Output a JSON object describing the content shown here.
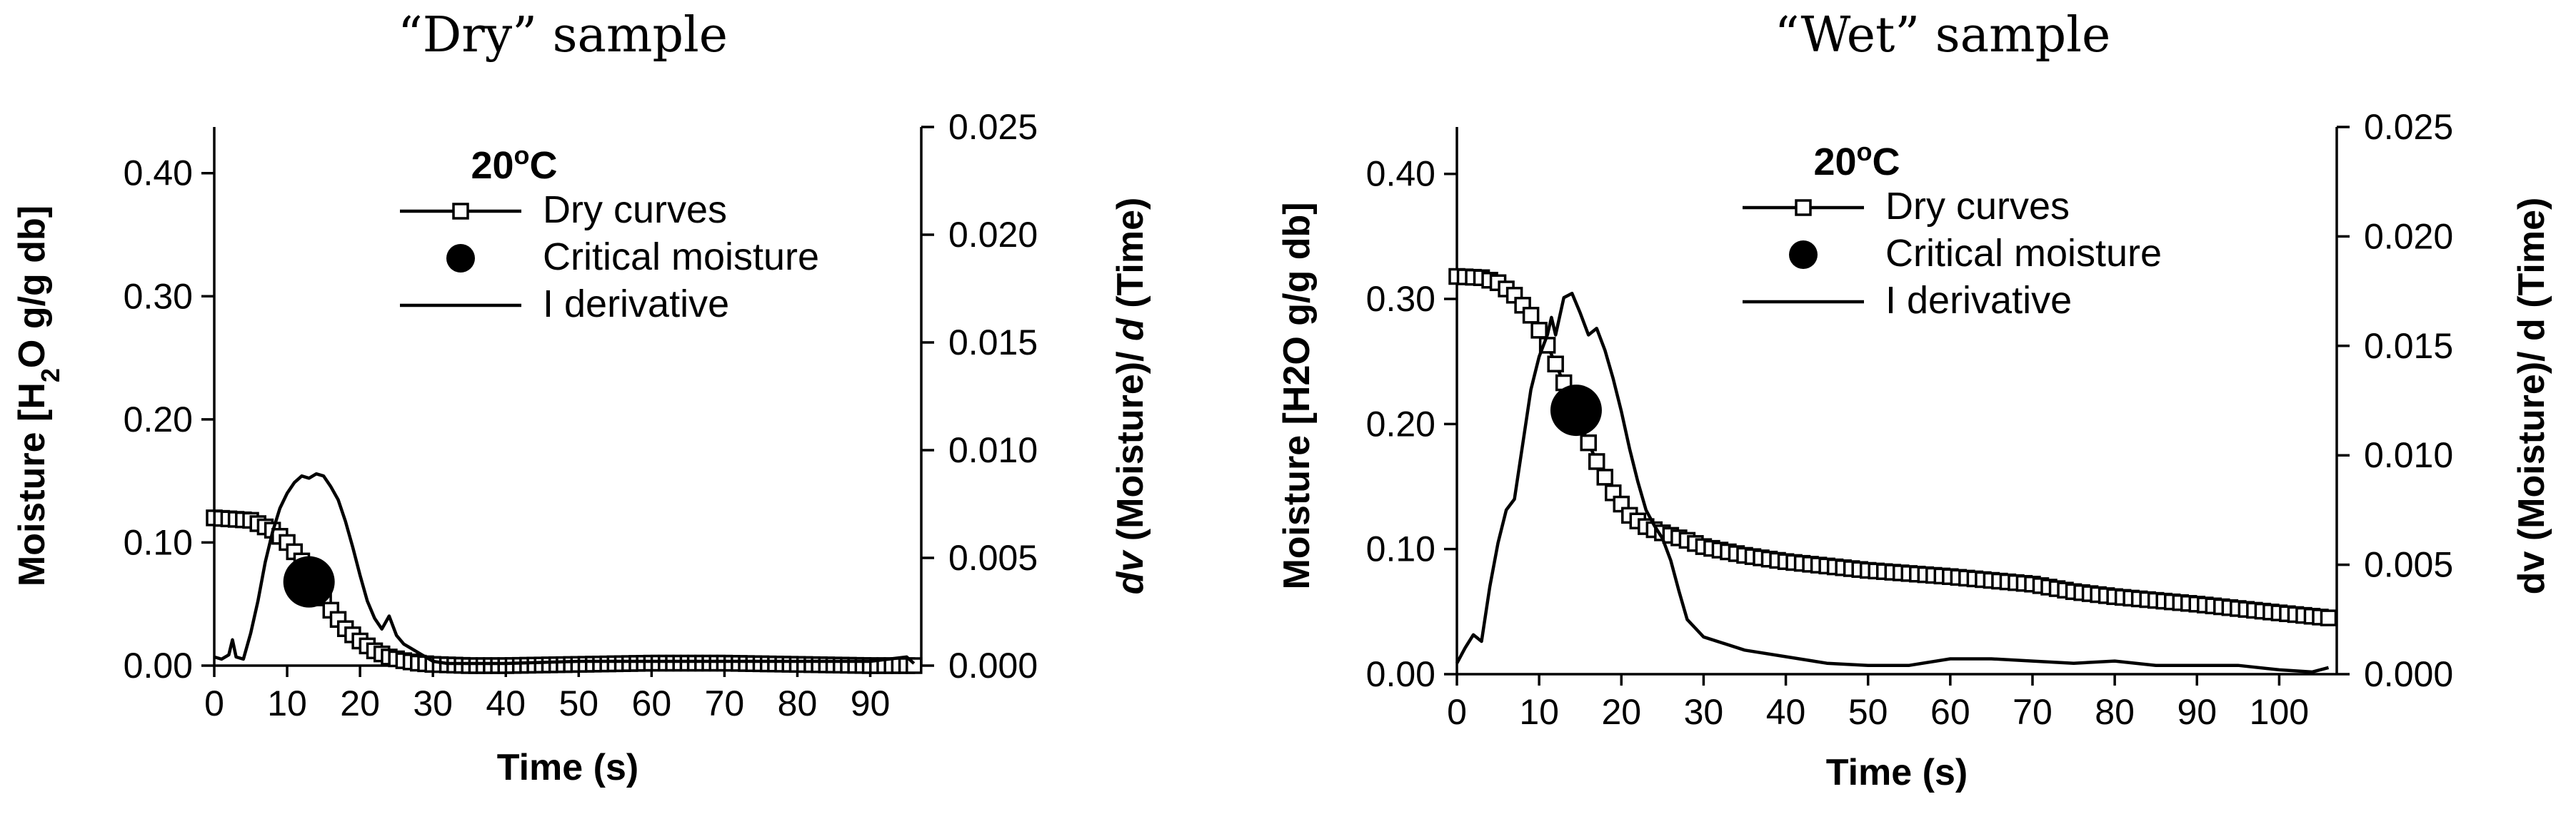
{
  "chart_data": [
    {
      "type": "line",
      "title": "“Dry” sample",
      "xlabel": "Time  (s)",
      "ylabel_parts": [
        "Moisture [H",
        "2",
        "O g/g db]"
      ],
      "y2label_parts": [
        "dv",
        " (Moisture)/ ",
        "d",
        " (Time)"
      ],
      "xlim": [
        0,
        97
      ],
      "ylim": [
        0,
        0.4375
      ],
      "y2lim": [
        0,
        0.025
      ],
      "x_ticks": [
        0,
        10,
        20,
        30,
        40,
        50,
        60,
        70,
        80,
        90
      ],
      "x_tick_labels": [
        "0",
        "10",
        "20",
        "30",
        "40",
        "50",
        "60",
        "70",
        "80",
        "90"
      ],
      "y_ticks": [
        0,
        0.1,
        0.2,
        0.3,
        0.4
      ],
      "y_tick_labels": [
        "0.00",
        "0.10",
        "0.20",
        "0.30",
        "0.40"
      ],
      "y2_ticks": [
        0,
        0.005,
        0.01,
        0.015,
        0.02,
        0.025
      ],
      "y2_tick_labels": [
        "0.000",
        "0.005",
        "0.010",
        "0.015",
        "0.020",
        "0.025"
      ],
      "legend": {
        "title_parts": [
          "20",
          "o",
          "C"
        ],
        "entries": [
          "Dry curves",
          "Critical moisture",
          "I derivative"
        ]
      },
      "series": [
        {
          "name": "Dry curves",
          "axis": "left",
          "marker": "square",
          "x": [
            0,
            5,
            8,
            10,
            12,
            14,
            16,
            18,
            20,
            22,
            24,
            26,
            28,
            30,
            35,
            40,
            50,
            60,
            70,
            80,
            90,
            96
          ],
          "y": [
            0.12,
            0.118,
            0.11,
            0.1,
            0.085,
            0.065,
            0.045,
            0.03,
            0.02,
            0.012,
            0.007,
            0.004,
            0.002,
            0.001,
            0.0,
            0.0,
            0.001,
            0.002,
            0.002,
            0.001,
            0.0,
            0.0
          ]
        },
        {
          "name": "Critical moisture",
          "axis": "left",
          "marker": "circle",
          "x": [
            13
          ],
          "y": [
            0.068
          ]
        },
        {
          "name": "I derivative",
          "axis": "right",
          "marker": "none",
          "x": [
            0,
            1,
            2,
            2.5,
            3,
            4,
            5,
            6,
            7,
            8,
            9,
            10,
            11,
            12,
            13,
            14,
            15,
            16,
            17,
            18,
            19,
            20,
            21,
            22,
            23,
            24,
            25,
            26,
            27,
            28,
            29,
            30,
            32,
            35,
            40,
            50,
            60,
            70,
            80,
            90,
            95,
            96
          ],
          "y": [
            0.0004,
            0.0003,
            0.0005,
            0.0012,
            0.0004,
            0.0003,
            0.0015,
            0.003,
            0.0048,
            0.0062,
            0.0073,
            0.008,
            0.0085,
            0.0088,
            0.0087,
            0.0089,
            0.0088,
            0.0083,
            0.0077,
            0.0067,
            0.0055,
            0.0042,
            0.003,
            0.0022,
            0.0017,
            0.0023,
            0.0014,
            0.001,
            0.0008,
            0.0006,
            0.0004,
            0.0002,
            0.0001,
            0.0001,
            0.0001,
            0.0002,
            0.0002,
            0.0002,
            0.0002,
            0.0002,
            0.0004,
            0.0001
          ]
        }
      ]
    },
    {
      "type": "line",
      "title": "“Wet” sample",
      "xlabel": "Time  (s)",
      "ylabel_parts": [
        "Moisture [H2O g/g db]"
      ],
      "y2label_parts": [
        "dv (Moisture)/ d (Time)"
      ],
      "xlim": [
        0,
        107
      ],
      "ylim": [
        0,
        0.4375
      ],
      "y2lim": [
        0,
        0.025
      ],
      "x_ticks": [
        0,
        10,
        20,
        30,
        40,
        50,
        60,
        70,
        80,
        90,
        100
      ],
      "x_tick_labels": [
        "0",
        "10",
        "20",
        "30",
        "40",
        "50",
        "60",
        "70",
        "80",
        "90",
        "100"
      ],
      "y_ticks": [
        0,
        0.1,
        0.2,
        0.3,
        0.4
      ],
      "y_tick_labels": [
        "0.00",
        "0.10",
        "0.20",
        "0.30",
        "0.40"
      ],
      "y2_ticks": [
        0,
        0.005,
        0.01,
        0.015,
        0.02,
        0.025
      ],
      "y2_tick_labels": [
        "0.000",
        "0.005",
        "0.010",
        "0.015",
        "0.020",
        "0.025"
      ],
      "legend": {
        "title_parts": [
          "20",
          "o",
          "C"
        ],
        "entries": [
          "Dry curves",
          "Critical moisture",
          "I derivative"
        ]
      },
      "series": [
        {
          "name": "Dry curves",
          "axis": "left",
          "marker": "square",
          "x": [
            0,
            3,
            5,
            7,
            9,
            11,
            13,
            15,
            17,
            19,
            21,
            23,
            25,
            28,
            30,
            35,
            40,
            50,
            60,
            70,
            75,
            80,
            90,
            100,
            106
          ],
          "y": [
            0.318,
            0.317,
            0.313,
            0.303,
            0.287,
            0.263,
            0.233,
            0.2,
            0.17,
            0.145,
            0.127,
            0.118,
            0.113,
            0.107,
            0.102,
            0.095,
            0.09,
            0.083,
            0.078,
            0.072,
            0.066,
            0.062,
            0.056,
            0.049,
            0.045
          ]
        },
        {
          "name": "Critical moisture",
          "axis": "left",
          "marker": "circle",
          "x": [
            14.5
          ],
          "y": [
            0.211
          ]
        },
        {
          "name": "I derivative",
          "axis": "right",
          "marker": "none",
          "x": [
            0,
            1,
            2,
            3,
            4,
            5,
            6,
            7,
            8,
            9,
            10,
            11,
            11.5,
            12,
            13,
            14,
            15,
            16,
            17,
            18,
            19,
            20,
            21,
            22,
            23,
            24,
            25,
            26,
            27,
            28,
            30,
            35,
            40,
            45,
            50,
            55,
            60,
            65,
            70,
            75,
            80,
            85,
            90,
            95,
            100,
            104,
            106
          ],
          "y": [
            0.0005,
            0.0012,
            0.0018,
            0.0015,
            0.004,
            0.006,
            0.0075,
            0.008,
            0.0105,
            0.013,
            0.0145,
            0.0155,
            0.0163,
            0.0155,
            0.0172,
            0.0174,
            0.0165,
            0.0155,
            0.0158,
            0.0148,
            0.0135,
            0.012,
            0.0103,
            0.0088,
            0.0075,
            0.0068,
            0.0062,
            0.0052,
            0.0038,
            0.0025,
            0.0017,
            0.0011,
            0.0008,
            0.0005,
            0.0004,
            0.0004,
            0.0007,
            0.0007,
            0.0006,
            0.0005,
            0.0006,
            0.0004,
            0.0004,
            0.0004,
            0.0002,
            0.0001,
            0.0003
          ]
        }
      ]
    }
  ]
}
